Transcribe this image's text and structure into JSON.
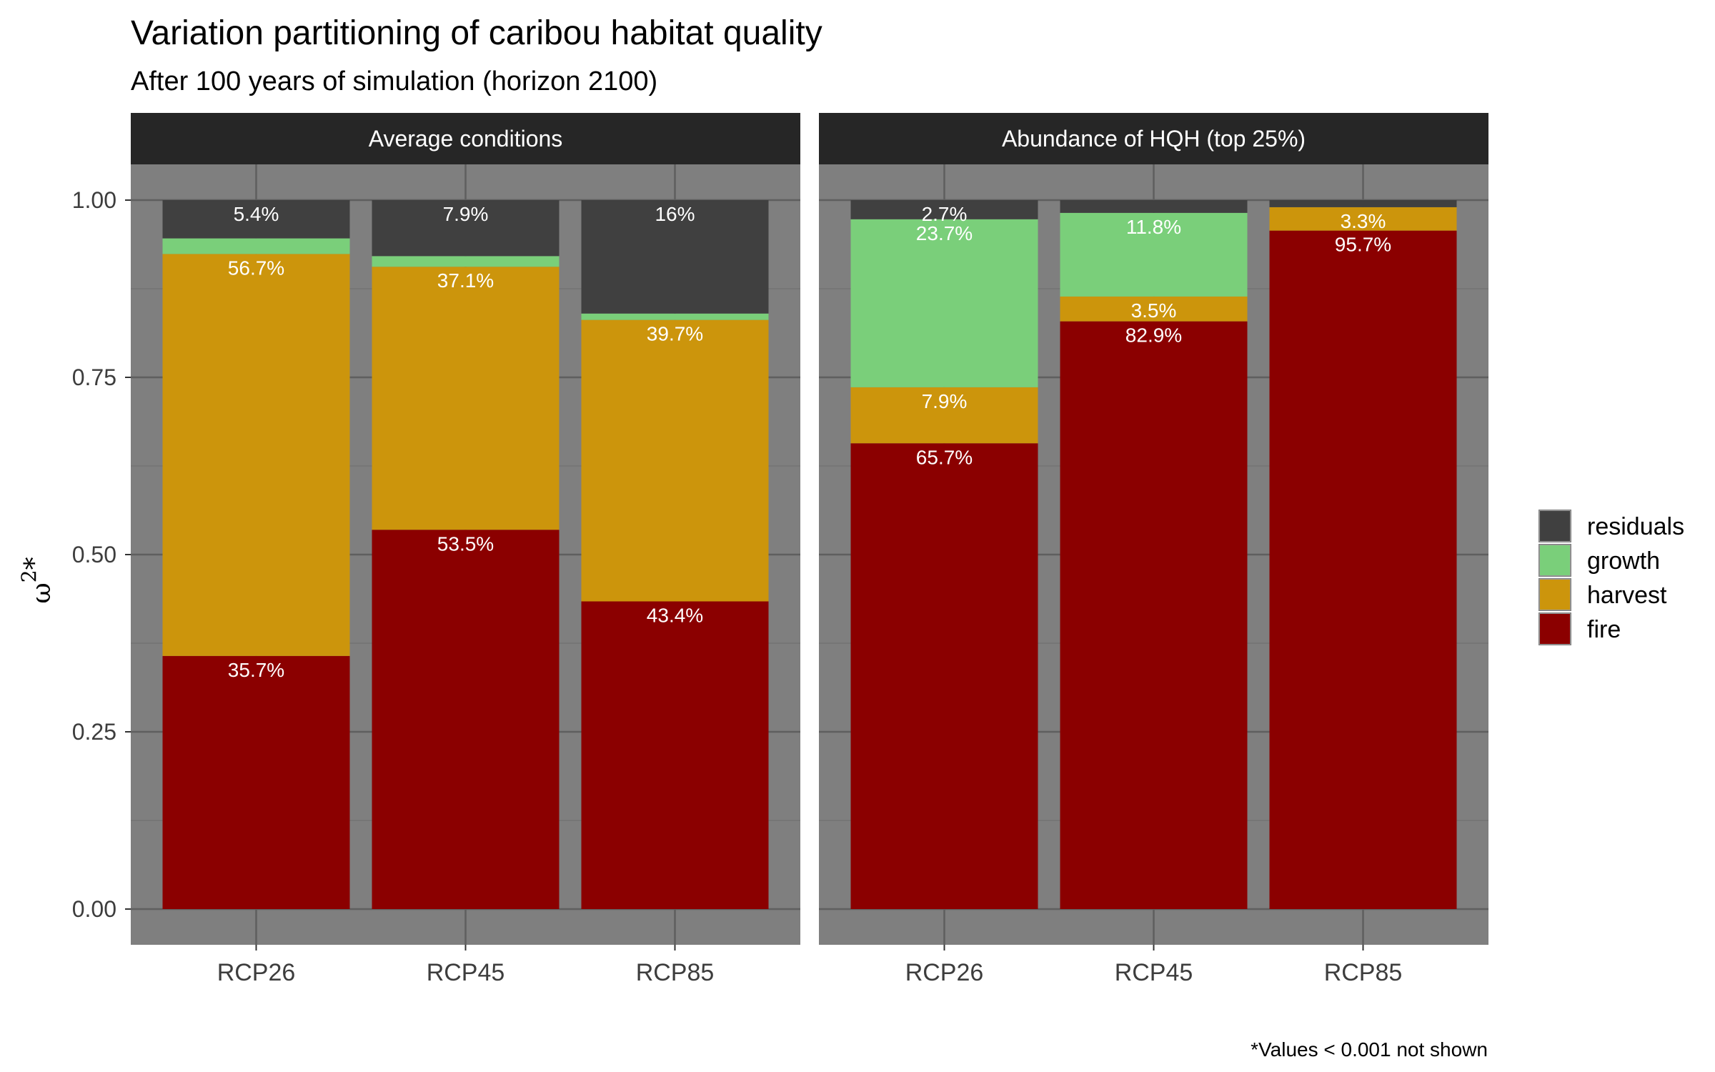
{
  "chart_data": {
    "type": "bar",
    "stacked": true,
    "title": "Variation partitioning of caribou habitat quality",
    "subtitle": "After 100 years of simulation (horizon 2100)",
    "ylabel": "ω",
    "ylabel_sup": "2",
    "ylabel_suffix": "*",
    "ylim": [
      0,
      1.05
    ],
    "yticks": [
      "0.00",
      "0.25",
      "0.50",
      "0.75",
      "1.00"
    ],
    "ytick_values": [
      0,
      0.25,
      0.5,
      0.75,
      1.0
    ],
    "categories": [
      "RCP26",
      "RCP45",
      "RCP85"
    ],
    "grid": true,
    "legend_position": "right",
    "stack_order": [
      "fire",
      "harvest",
      "growth",
      "residuals"
    ],
    "legend": [
      {
        "name": "residuals",
        "color": "#404040"
      },
      {
        "name": "growth",
        "color": "#7acf7a"
      },
      {
        "name": "harvest",
        "color": "#cc950c"
      },
      {
        "name": "fire",
        "color": "#8b0000"
      }
    ],
    "facets": [
      {
        "name": "Average conditions",
        "series": [
          {
            "name": "fire",
            "values": [
              0.357,
              0.535,
              0.434
            ],
            "labels": [
              "35.7%",
              "53.5%",
              "43.4%"
            ]
          },
          {
            "name": "harvest",
            "values": [
              0.567,
              0.371,
              0.397
            ],
            "labels": [
              "56.7%",
              "37.1%",
              "39.7%"
            ]
          },
          {
            "name": "growth",
            "values": [
              0.022,
              0.015,
              0.009
            ],
            "labels": [
              "",
              "",
              ""
            ]
          },
          {
            "name": "residuals",
            "values": [
              0.054,
              0.079,
              0.16
            ],
            "labels": [
              "5.4%",
              "7.9%",
              "16%"
            ]
          }
        ]
      },
      {
        "name": "Abundance of HQH (top 25%)",
        "series": [
          {
            "name": "fire",
            "values": [
              0.657,
              0.829,
              0.957
            ],
            "labels": [
              "65.7%",
              "82.9%",
              "95.7%"
            ]
          },
          {
            "name": "harvest",
            "values": [
              0.079,
              0.035,
              0.033
            ],
            "labels": [
              "7.9%",
              "3.5%",
              "3.3%"
            ]
          },
          {
            "name": "growth",
            "values": [
              0.237,
              0.118,
              0.0
            ],
            "labels": [
              "23.7%",
              "11.8%",
              ""
            ]
          },
          {
            "name": "residuals",
            "values": [
              0.027,
              0.018,
              0.01
            ],
            "labels": [
              "2.7%",
              "",
              ""
            ]
          }
        ]
      }
    ],
    "caption": "*Values < 0.001 not shown"
  }
}
